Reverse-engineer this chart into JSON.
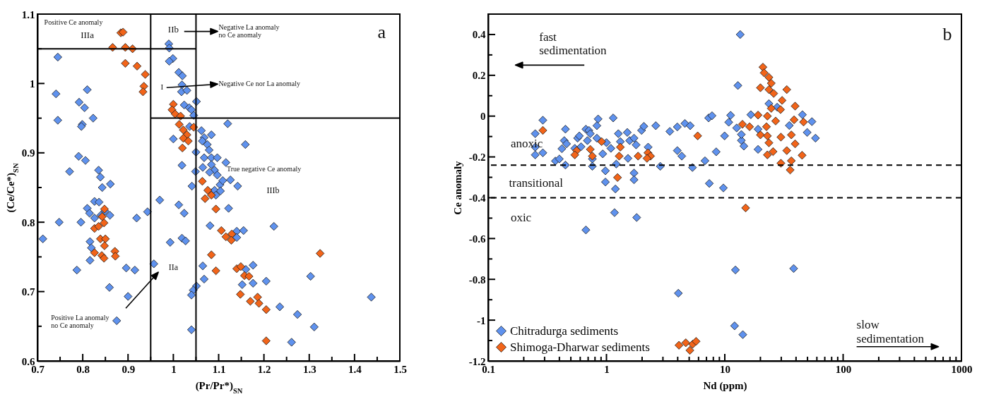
{
  "chart_data": [
    {
      "type": "scatter",
      "xlabel": "(Pr/Pr*)$_{SN}$",
      "ylabel": "(Ce/Ce*)$_{SN}$",
      "xlim": [
        0.7,
        1.5
      ],
      "ylim": [
        0.6,
        1.1
      ],
      "xticks": [
        0.7,
        {
          "value": 0.75,
          "label": null
        },
        0.8,
        {
          "value": 0.85,
          "label": null
        },
        0.9,
        {
          "value": 0.95,
          "label": null
        },
        1,
        {
          "value": 1.05,
          "label": null
        },
        1.1,
        {
          "value": 1.15,
          "label": null
        },
        1.2,
        {
          "value": 1.25,
          "label": null
        },
        1.3,
        {
          "value": 1.35,
          "label": null
        },
        1.4,
        {
          "value": 1.45,
          "label": null
        },
        1.5
      ],
      "yticks": [
        0.6,
        {
          "value": 0.65,
          "label": null
        },
        0.7,
        {
          "value": 0.75,
          "label": null
        },
        0.8,
        {
          "value": 0.85,
          "label": null
        },
        0.9,
        {
          "value": 0.95,
          "label": null
        },
        1,
        {
          "value": 1.05,
          "label": null
        },
        1.1
      ],
      "marker": "diamond",
      "legend": false,
      "ref_lines": [
        {
          "axis": "x",
          "value": 0.95,
          "color": "#000000",
          "line_style": "solid"
        },
        {
          "axis": "x",
          "value": 1.05,
          "color": "#000000",
          "line_style": "solid"
        }
      ],
      "annotations": [
        "Positive Ce anomaly",
        "IIIa",
        "IIb",
        "Negative La anomaly\nno Ce anomaly",
        "I",
        "Negative Ce nor La anomaly",
        "True negative Ce anomaly",
        "IIIb",
        "IIa",
        "Positive La anomaly\nno Ce anomaly",
        "a"
      ],
      "series": [
        {
          "color": "#5f92ee",
          "x": [
            0.745,
            0.741,
            0.745,
            0.792,
            0.804,
            0.81,
            0.799,
            0.797,
            0.823,
            0.791,
            0.806,
            0.771,
            0.835,
            0.839,
            0.843,
            0.861,
            0.826,
            0.836,
            0.81,
            0.815,
            0.826,
            0.84,
            0.849,
            0.86,
            0.748,
            0.796,
            0.712,
            0.816,
            0.819,
            0.816,
            0.787,
            0.896,
            0.915,
            0.859,
            0.9,
            0.875,
            0.919,
            0.943,
            0.957,
            0.97,
            0.99,
            0.991,
            0.999,
            0.991,
            1.012,
            1.02,
            1.019,
            1.018,
            1.03,
            1.024,
            1.035,
            1.04,
            1.051,
            1.045,
            1.036,
            1.0,
            1.019,
            1.05,
            1.049,
            1.041,
            1.012,
            1.024,
            1.019,
            1.027,
            0.993,
            1.051,
            1.044,
            1.04,
            1.04,
            1.065,
            1.081,
            1.068,
            1.062,
            1.068,
            1.084,
            1.064,
            1.075,
            1.079,
            1.068,
            1.084,
            1.097,
            1.065,
            1.084,
            1.091,
            1.097,
            1.08,
            1.086,
            1.091,
            1.103,
            1.094,
            1.12,
            1.159,
            1.116,
            1.109,
            1.126,
            1.142,
            1.104,
            1.122,
            1.222,
            1.14,
            1.155,
            1.14,
            1.176,
            1.16,
            1.303,
            1.205,
            1.176,
            1.152,
            1.437,
            1.235,
            1.274,
            1.311,
            1.261
          ],
          "values": [
            1.038,
            0.985,
            0.947,
            0.973,
            0.965,
            0.991,
            0.941,
            0.938,
            0.95,
            0.895,
            0.889,
            0.873,
            0.875,
            0.865,
            0.85,
            0.855,
            0.83,
            0.829,
            0.82,
            0.813,
            0.806,
            0.81,
            0.816,
            0.81,
            0.8,
            0.8,
            0.776,
            0.772,
            0.763,
            0.745,
            0.731,
            0.734,
            0.731,
            0.706,
            0.693,
            0.658,
            0.806,
            0.815,
            0.74,
            0.832,
            1.057,
            1.051,
            1.036,
            1.032,
            1.016,
            1.011,
            0.998,
            0.988,
            0.99,
            0.969,
            0.965,
            0.962,
            0.974,
            0.954,
            0.938,
            0.92,
            0.882,
            0.901,
            0.873,
            0.852,
            0.825,
            0.813,
            0.777,
            0.773,
            0.771,
            0.708,
            0.702,
            0.695,
            0.645,
            0.737,
            0.795,
            0.718,
            0.932,
            0.922,
            0.926,
            0.917,
            0.912,
            0.904,
            0.893,
            0.893,
            0.893,
            0.879,
            0.883,
            0.875,
            0.868,
            0.872,
            0.843,
            0.846,
            0.854,
            0.839,
            0.942,
            0.912,
            0.886,
            0.86,
            0.861,
            0.852,
            0.845,
            0.82,
            0.794,
            0.787,
            0.788,
            0.778,
            0.738,
            0.732,
            0.722,
            0.715,
            0.712,
            0.71,
            0.692,
            0.678,
            0.667,
            0.649,
            0.627
          ]
        },
        {
          "color": "#f26419",
          "x": [
            0.884,
            0.889,
            0.866,
            0.894,
            0.91,
            0.894,
            0.92,
            0.938,
            0.935,
            0.933,
            1.0,
            0.997,
            1.004,
            1.016,
            1.013,
            1.022,
            1.03,
            1.022,
            1.033,
            1.02,
            1.045,
            1.064,
            1.076,
            1.07,
            1.084,
            1.094,
            0.848,
            0.843,
            0.826,
            0.835,
            0.847,
            0.839,
            0.85,
            0.848,
            0.826,
            0.842,
            0.847,
            0.871,
            0.872,
            1.084,
            1.094,
            1.106,
            1.116,
            1.129,
            1.128,
            1.324,
            1.14,
            1.149,
            1.157,
            1.167,
            1.148,
            1.17,
            1.186,
            1.189,
            1.205,
            1.205
          ],
          "values": [
            1.073,
            1.074,
            1.052,
            1.052,
            1.05,
            1.029,
            1.025,
            1.013,
            0.996,
            0.988,
            0.97,
            0.962,
            0.956,
            0.953,
            0.941,
            0.933,
            0.926,
            0.921,
            0.917,
            0.907,
            0.937,
            0.859,
            0.846,
            0.834,
            0.839,
            0.819,
            0.819,
            0.808,
            0.791,
            0.794,
            0.799,
            0.776,
            0.776,
            0.766,
            0.756,
            0.752,
            0.748,
            0.758,
            0.751,
            0.753,
            0.73,
            0.788,
            0.779,
            0.783,
            0.774,
            0.755,
            0.733,
            0.736,
            0.723,
            0.722,
            0.696,
            0.686,
            0.692,
            0.683,
            0.674,
            0.629
          ]
        },
        {
          "type": "line",
          "marker": "none",
          "color": "#000000",
          "x": [
            0.7,
            1.05
          ],
          "values": [
            1.05,
            1.05
          ]
        },
        {
          "type": "line",
          "marker": "none",
          "color": "#000000",
          "x": [
            0.95,
            1.5
          ],
          "values": [
            0.95,
            0.95
          ]
        }
      ]
    },
    {
      "type": "scatter",
      "xlabel": "Nd (ppm)",
      "ylabel": "Ce anomaly",
      "log": "x",
      "xlim": [
        0.1,
        1000
      ],
      "ylim": [
        -1.2,
        0.5
      ],
      "xticks": [
        0.1,
        {
          "value": 0.2,
          "label": null
        },
        {
          "value": 0.3,
          "label": null
        },
        {
          "value": 0.4,
          "label": null
        },
        {
          "value": 0.5,
          "label": null
        },
        {
          "value": 0.6,
          "label": null
        },
        {
          "value": 0.7,
          "label": null
        },
        {
          "value": 0.8,
          "label": null
        },
        {
          "value": 0.9,
          "label": null
        },
        1,
        {
          "value": 2,
          "label": null
        },
        {
          "value": 3,
          "label": null
        },
        {
          "value": 4,
          "label": null
        },
        {
          "value": 5,
          "label": null
        },
        {
          "value": 6,
          "label": null
        },
        {
          "value": 7,
          "label": null
        },
        {
          "value": 8,
          "label": null
        },
        {
          "value": 9,
          "label": null
        },
        10,
        {
          "value": 20,
          "label": null
        },
        {
          "value": 30,
          "label": null
        },
        {
          "value": 40,
          "label": null
        },
        {
          "value": 50,
          "label": null
        },
        {
          "value": 60,
          "label": null
        },
        {
          "value": 70,
          "label": null
        },
        {
          "value": 80,
          "label": null
        },
        {
          "value": 90,
          "label": null
        },
        100,
        {
          "value": 200,
          "label": null
        },
        {
          "value": 300,
          "label": null
        },
        {
          "value": 400,
          "label": null
        },
        {
          "value": 500,
          "label": null
        },
        {
          "value": 600,
          "label": null
        },
        {
          "value": 700,
          "label": null
        },
        {
          "value": 800,
          "label": null
        },
        {
          "value": 900,
          "label": null
        },
        1000
      ],
      "yticks": [
        -1.2,
        {
          "value": -1.1,
          "label": null
        },
        -1,
        {
          "value": -0.9,
          "label": null
        },
        -0.8,
        {
          "value": -0.7,
          "label": null
        },
        -0.6,
        {
          "value": -0.5,
          "label": null
        },
        -0.4,
        {
          "value": -0.3,
          "label": null
        },
        -0.2,
        {
          "value": -0.1,
          "label": null
        },
        0,
        {
          "value": 0.1,
          "label": null
        },
        0.2,
        {
          "value": 0.3,
          "label": null
        },
        0.4
      ],
      "marker": "diamond",
      "legend": "bottom left",
      "ref_lines": [
        {
          "axis": "y",
          "value": -0.24,
          "color": "#000000",
          "line_style": "dashed"
        },
        {
          "axis": "y",
          "value": -0.4,
          "color": "#000000",
          "line_style": "dashed"
        }
      ],
      "annotations": [
        "fast\nsedimentation",
        "anoxic",
        "transitional",
        "oxic",
        "slow\nsedimentation",
        "b"
      ],
      "series": [
        {
          "name": "Chitradurga sediments",
          "color": "#5f92ee",
          "x": [
            0.29,
            0.25,
            0.25,
            0.25,
            0.29,
            0.37,
            0.4,
            0.42,
            0.44,
            0.45,
            0.46,
            0.45,
            0.54,
            0.57,
            0.59,
            0.67,
            0.71,
            0.69,
            0.61,
            0.73,
            0.85,
            0.83,
            0.83,
            0.76,
            0.76,
            1.0,
            1.09,
            1.14,
            0.93,
            0.98,
            0.98,
            1.19,
            1.21,
            1.26,
            1.31,
            1.5,
            1.57,
            1.71,
            1.78,
            1.52,
            1.71,
            1.71,
            1.98,
            2.07,
            2.25,
            2.61,
            2.85,
            3.43,
            3.97,
            3.97,
            4.33,
            4.6,
            5.1,
            5.33,
            6.8,
            7.4,
            7.3,
            7.8,
            9.96,
            8.46,
            9.73,
            13.5,
            12.9,
            11.2,
            10.8,
            12.6,
            16.6,
            19.1,
            13.8,
            14.5,
            19.1,
            13.8,
            23.6,
            27.7,
            45.3,
            54.5,
            49.7,
            58.4,
            35.1,
            0.67,
            1.17,
            1.8,
            4.05,
            12.3,
            38.2,
            12.1,
            14.2
          ],
          "values": [
            -0.02,
            -0.086,
            -0.152,
            -0.19,
            -0.18,
            -0.22,
            -0.21,
            -0.16,
            -0.12,
            -0.064,
            -0.136,
            -0.24,
            -0.158,
            -0.108,
            -0.097,
            -0.064,
            -0.07,
            -0.12,
            -0.15,
            -0.086,
            -0.014,
            -0.047,
            -0.108,
            -0.21,
            -0.246,
            -0.13,
            -0.158,
            -0.009,
            -0.185,
            -0.268,
            -0.323,
            -0.357,
            -0.235,
            -0.086,
            -0.125,
            -0.08,
            -0.12,
            -0.108,
            -0.141,
            -0.207,
            -0.279,
            -0.312,
            -0.07,
            -0.05,
            -0.152,
            -0.047,
            -0.246,
            -0.075,
            -0.053,
            -0.169,
            -0.196,
            -0.036,
            -0.047,
            -0.252,
            -0.219,
            -0.33,
            -0.009,
            0.002,
            -0.097,
            -0.175,
            -0.352,
            0.4,
            0.15,
            0.004,
            -0.03,
            -0.058,
            0.007,
            -0.064,
            -0.119,
            -0.147,
            -0.163,
            -0.09,
            0.061,
            0.044,
            0.007,
            -0.027,
            -0.08,
            -0.108,
            -0.046,
            -0.558,
            -0.473,
            -0.497,
            -0.868,
            -0.754,
            -0.747,
            -1.028,
            -1.071
          ]
        },
        {
          "name": "Shimoga-Dharwar sediments",
          "color": "#f26419",
          "x": [
            0.29,
            0.56,
            0.54,
            0.73,
            0.76,
            0.91,
            1.28,
            1.31,
            1.24,
            1.85,
            2.24,
            2.36,
            2.2,
            5.9,
            15.0,
            4.1,
            4.68,
            5.35,
            5.07,
            5.72,
            21.0,
            21.5,
            23.6,
            24.7,
            20.0,
            23.6,
            25.9,
            33.4,
            30.5,
            39.3,
            24.7,
            29.6,
            19.1,
            22.9,
            14.1,
            16.2,
            26.9,
            38.5,
            46.3,
            22.5,
            20.0,
            22.9,
            29.8,
            36.5,
            23.6,
            39.3,
            22.9,
            25.6,
            33.4,
            45.0,
            29.8,
            35.7,
            36.5
          ],
          "values": [
            -0.07,
            -0.169,
            -0.19,
            -0.163,
            -0.196,
            -0.125,
            -0.196,
            -0.152,
            -0.301,
            -0.196,
            -0.18,
            -0.196,
            -0.207,
            -0.097,
            -0.45,
            -1.123,
            -1.111,
            -1.118,
            -1.148,
            -1.104,
            0.24,
            0.212,
            0.19,
            0.161,
            0.139,
            0.13,
            0.111,
            0.13,
            0.077,
            0.049,
            0.038,
            0.032,
            0.005,
            0.0,
            -0.04,
            -0.052,
            -0.024,
            -0.018,
            -0.029,
            -0.052,
            -0.092,
            -0.097,
            -0.103,
            -0.092,
            -0.131,
            -0.136,
            -0.19,
            -0.174,
            -0.169,
            -0.192,
            -0.231,
            -0.264,
            -0.219
          ]
        }
      ]
    }
  ]
}
